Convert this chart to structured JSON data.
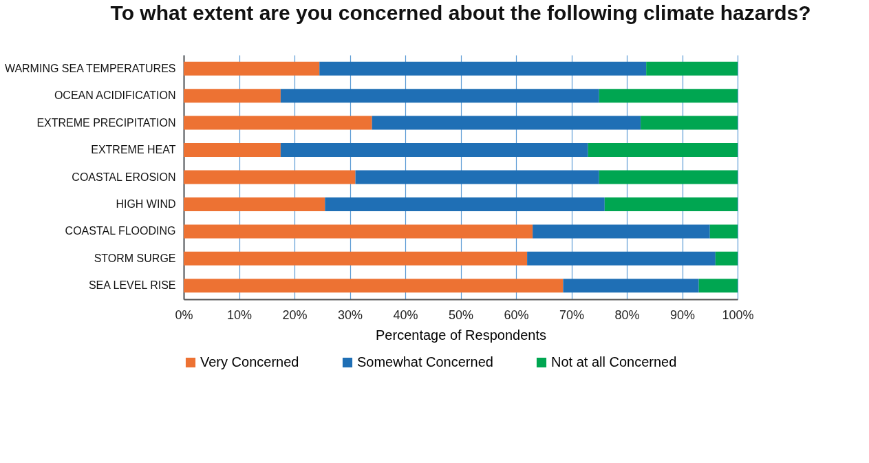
{
  "chart_data": {
    "type": "bar",
    "orientation": "horizontal",
    "stacked": true,
    "title": "To what extent are you concerned about the following climate hazards?",
    "xlabel": "Percentage of Respondents",
    "categories": [
      "WARMING SEA TEMPERATURES",
      "OCEAN ACIDIFICATION",
      "EXTREME PRECIPITATION",
      "EXTREME HEAT",
      "COASTAL EROSION",
      "HIGH WIND",
      "COASTAL FLOODING",
      "STORM SURGE",
      "SEA LEVEL RISE"
    ],
    "series": [
      {
        "name": "Very Concerned",
        "color": "#ed7233",
        "values": [
          24.5,
          17.5,
          34,
          17.5,
          31,
          25.5,
          63,
          62,
          68.5
        ]
      },
      {
        "name": "Somewhat Concerned",
        "color": "#1f6fb5",
        "values": [
          59,
          57.5,
          48.5,
          55.5,
          44,
          50.5,
          32,
          34,
          24.5
        ]
      },
      {
        "name": "Not at all Concerned",
        "color": "#00a651",
        "values": [
          16.5,
          25,
          17.5,
          27,
          25,
          24,
          5,
          4,
          7
        ]
      }
    ],
    "xlim": [
      0,
      100
    ],
    "xticks": [
      {
        "value": 0,
        "label": "0%"
      },
      {
        "value": 10,
        "label": "10%"
      },
      {
        "value": 20,
        "label": "20%"
      },
      {
        "value": 30,
        "label": "30%"
      },
      {
        "value": 40,
        "label": "40%"
      },
      {
        "value": 50,
        "label": "50%"
      },
      {
        "value": 60,
        "label": "60%"
      },
      {
        "value": 70,
        "label": "70%"
      },
      {
        "value": 80,
        "label": "80%"
      },
      {
        "value": 90,
        "label": "90%"
      },
      {
        "value": 100,
        "label": "100%"
      }
    ],
    "grid": "x",
    "legend": "bottom"
  }
}
